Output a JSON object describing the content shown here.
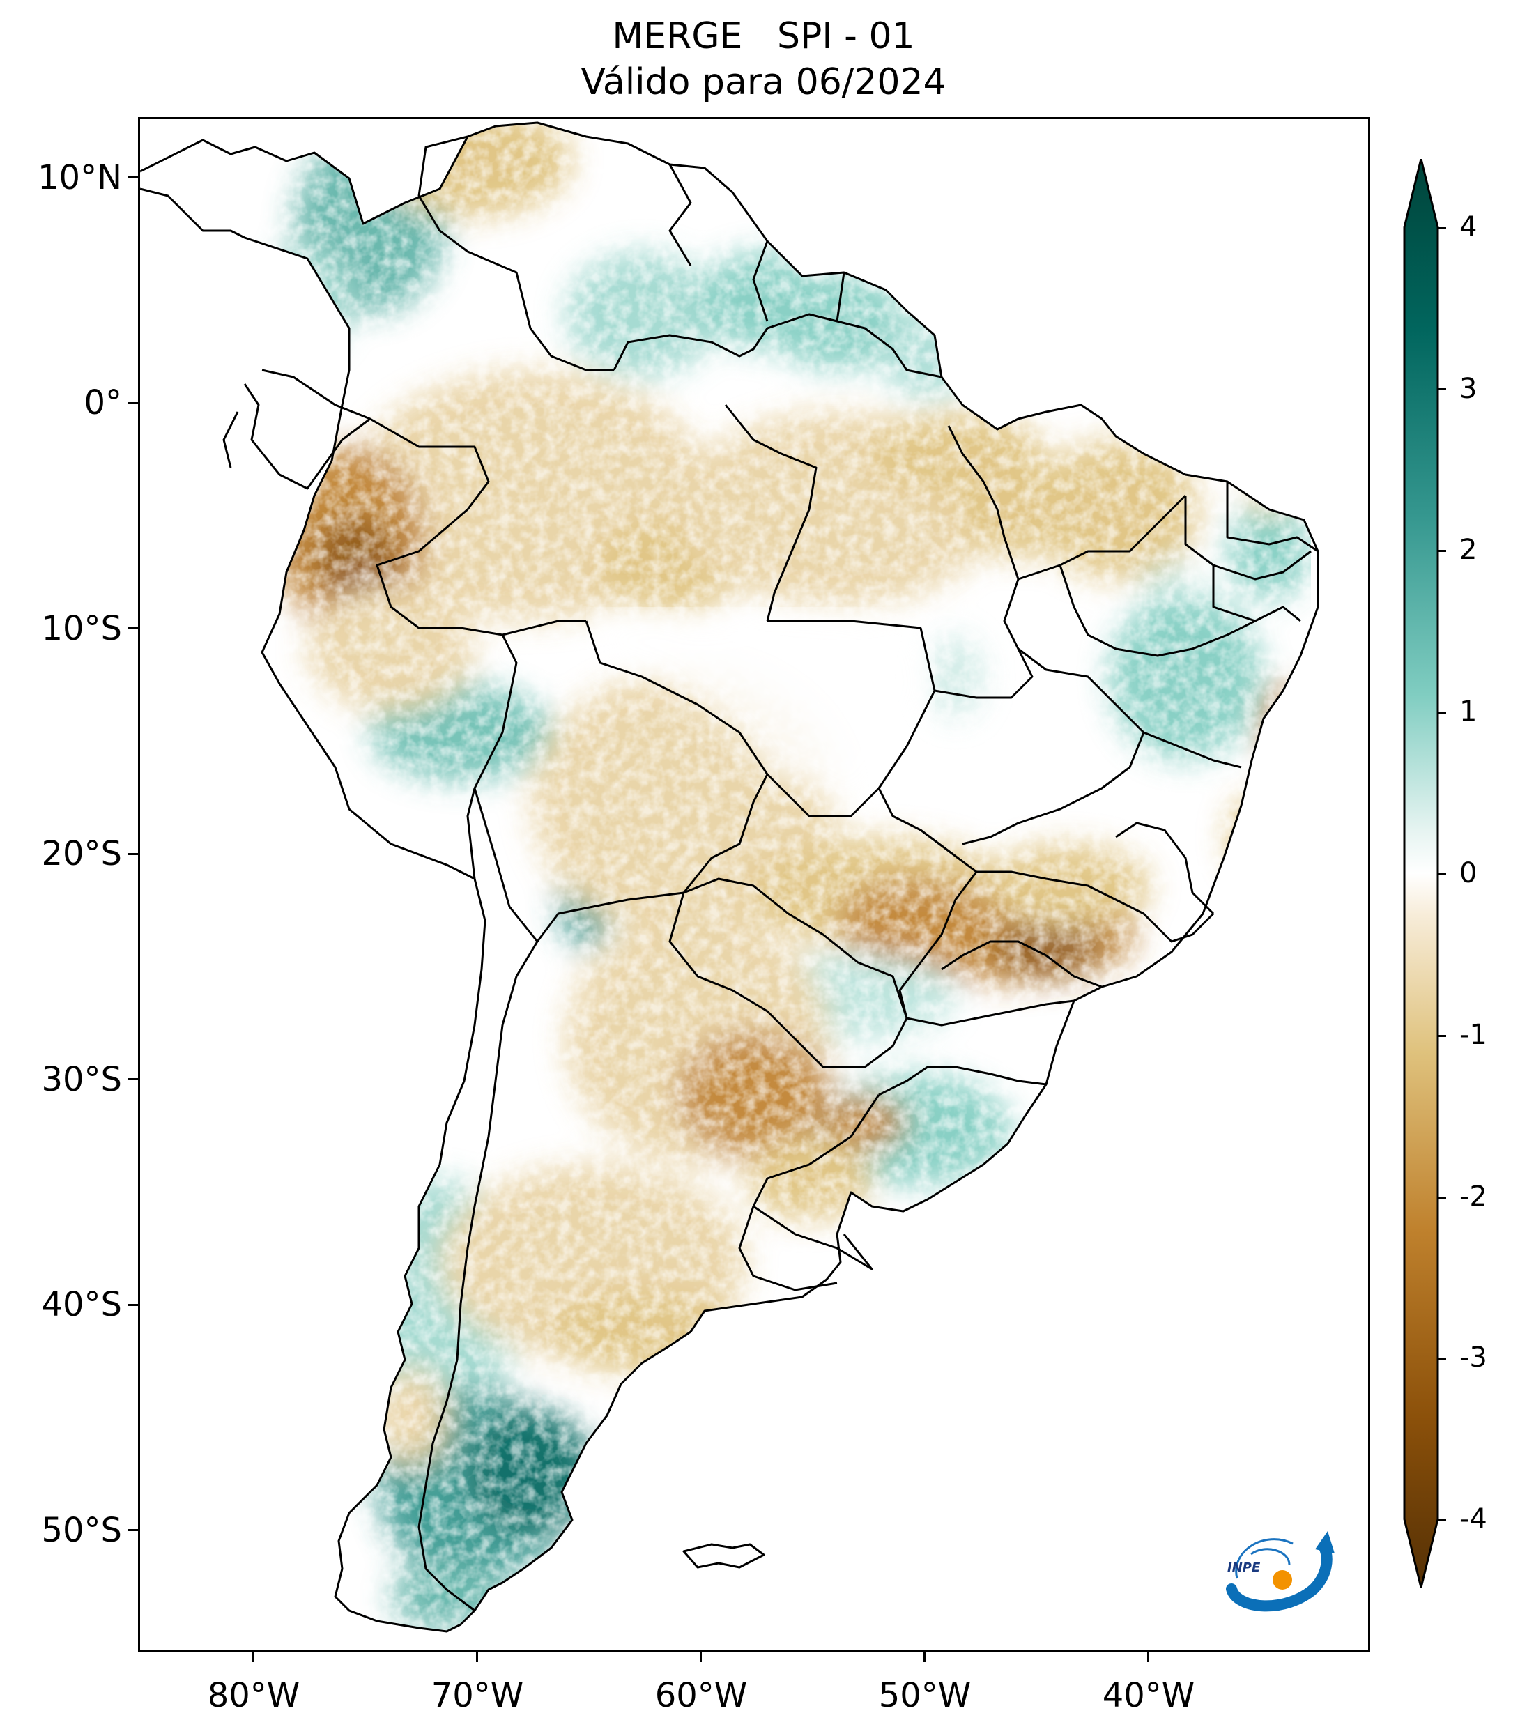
{
  "title": {
    "line1": "MERGE   SPI - 01",
    "line2": "Válido para 06/2024"
  },
  "axes": {
    "lat_labels": [
      "10°N",
      "0°",
      "10°S",
      "20°S",
      "30°S",
      "40°S",
      "50°S"
    ],
    "lon_labels": [
      "80°W",
      "70°W",
      "60°W",
      "50°W",
      "40°W"
    ]
  },
  "colorbar": {
    "ticks": [
      "4",
      "3",
      "2",
      "1",
      "0",
      "-1",
      "-2",
      "-3",
      "-4"
    ],
    "colors": {
      "max": "#00443a",
      "high": "#35978f",
      "mid_high": "#80cdc1",
      "neutral": "#ffffff",
      "mid_low": "#dfc27d",
      "low": "#bf812d",
      "min": "#543005"
    }
  },
  "logo": {
    "text": "INPE"
  }
}
